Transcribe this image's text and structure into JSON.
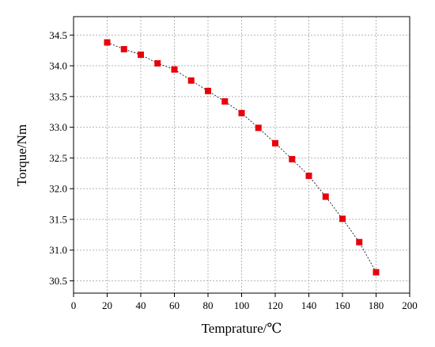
{
  "chart_data": {
    "type": "scatter",
    "title": "",
    "xlabel": "Temprature/℃",
    "ylabel": "Torque/Nm",
    "xlim": [
      0,
      200
    ],
    "ylim": [
      30.3,
      34.8
    ],
    "grid": true,
    "x_ticks": [
      "0",
      "20",
      "40",
      "60",
      "80",
      "100",
      "120",
      "140",
      "160",
      "180",
      "200"
    ],
    "x_tick_values": [
      0,
      20,
      40,
      60,
      80,
      100,
      120,
      140,
      160,
      180,
      200
    ],
    "y_ticks": [
      "30.5",
      "31.0",
      "31.5",
      "32.0",
      "32.5",
      "33.0",
      "33.5",
      "34.0",
      "34.5"
    ],
    "y_tick_values": [
      30.5,
      31.0,
      31.5,
      32.0,
      32.5,
      33.0,
      33.5,
      34.0,
      34.5
    ],
    "marker": "square",
    "marker_color": "#e8000b",
    "line_style": "dotted",
    "series": [
      {
        "x": [
          20,
          30,
          40,
          50,
          60,
          70,
          80,
          90,
          100,
          110,
          120,
          130,
          140,
          150,
          160,
          170,
          180
        ],
        "y": [
          34.38,
          34.27,
          34.18,
          34.04,
          33.94,
          33.76,
          33.59,
          33.42,
          33.23,
          32.99,
          32.74,
          32.48,
          32.21,
          31.87,
          31.51,
          31.13,
          30.64
        ]
      }
    ]
  }
}
